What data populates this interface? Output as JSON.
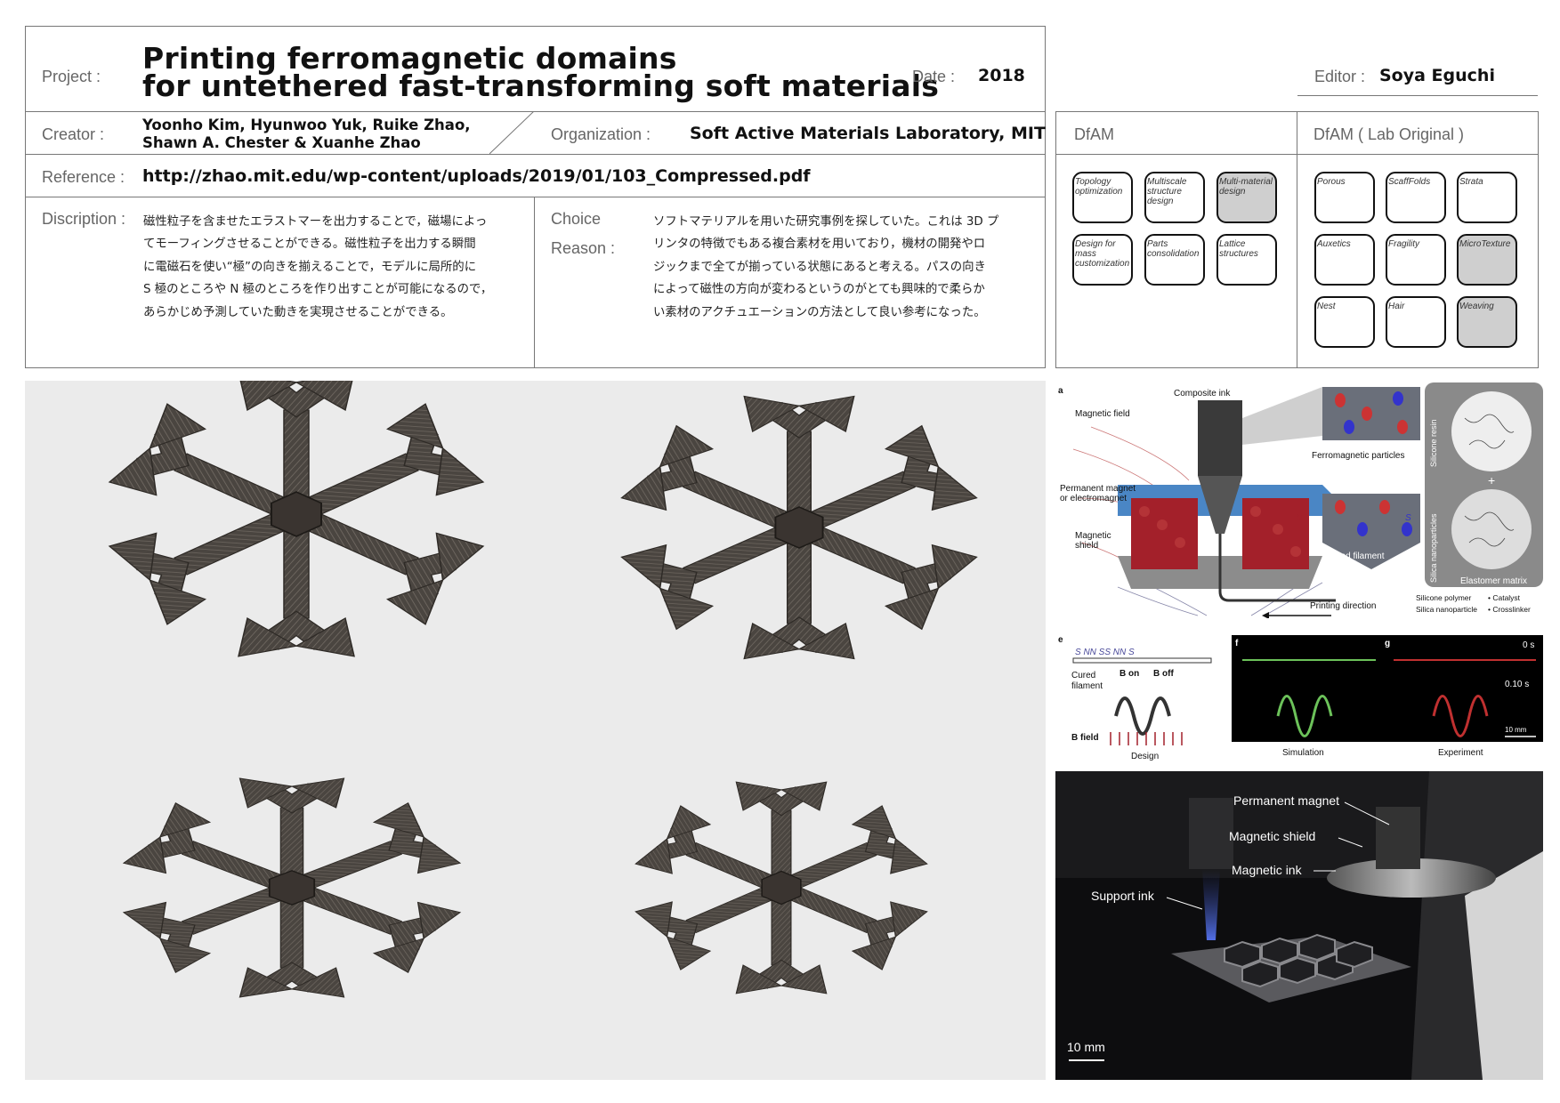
{
  "header": {
    "project_label": "Project :",
    "title_line1": "Printing ferromagnetic domains",
    "title_line2": "for untethered fast-transforming soft materials",
    "date_label": "Date :",
    "date": "2018",
    "editor_label": "Editor :",
    "editor": "Soya Eguchi",
    "creator_label": "Creator :",
    "creator_line1": "Yoonho Kim, Hyunwoo Yuk, Ruike Zhao,",
    "creator_line2": "Shawn A. Chester & Xuanhe Zhao",
    "organization_label": "Organization :",
    "organization": "Soft Active Materials Laboratory, MIT",
    "reference_label": "Reference :",
    "reference": "http://zhao.mit.edu/wp-content/uploads/2019/01/103_Compressed.pdf",
    "description_label": "Discription :",
    "description_lines": [
      "磁性粒子を含ませたエラストマーを出力することで，磁場によっ",
      "てモーフィングさせることができる。磁性粒子を出力する瞬間",
      "に電磁石を使い“極”の向きを揃えることで，モデルに局所的に",
      "S 極のところや N 極のところを作り出すことが可能になるので，",
      "あらかじめ予測していた動きを実現させることができる。"
    ],
    "choice_label_1": "Choice",
    "choice_label_2": "Reason :",
    "choice_lines": [
      "ソフトマテリアルを用いた研究事例を探していた。これは 3D プ",
      "リンタの特徴でもある複合素材を用いており，機材の開発やロ",
      "ジックまで全てが揃っている状態にあると考える。パスの向き",
      "によって磁性の方向が変わるというのがとても興味的で柔らか",
      "い素材のアクチュエーションの方法として良い参考になった。"
    ]
  },
  "dfam": {
    "title": "DfAM",
    "items": [
      {
        "label": "Topology optimization",
        "selected": false
      },
      {
        "label": "Multiscale structure design",
        "selected": false
      },
      {
        "label": "Multi-material design",
        "selected": true
      },
      {
        "label": "Design for mass customization",
        "selected": false
      },
      {
        "label": "Parts consolidation",
        "selected": false
      },
      {
        "label": "Lattice structures",
        "selected": false
      }
    ]
  },
  "lab": {
    "title": "DfAM ( Lab Original )",
    "items": [
      {
        "label": "Porous",
        "selected": false
      },
      {
        "label": "ScaffFolds",
        "selected": false
      },
      {
        "label": "Strata",
        "selected": false
      },
      {
        "label": "Auxetics",
        "selected": false
      },
      {
        "label": "Fragility",
        "selected": false
      },
      {
        "label": "MicroTexture",
        "selected": true
      },
      {
        "label": "Nest",
        "selected": false
      },
      {
        "label": "Hair",
        "selected": false
      },
      {
        "label": "Weaving",
        "selected": true
      }
    ]
  },
  "figure_a": {
    "panel": "a",
    "composite_ink": "Composite ink",
    "magnetic_field": "Magnetic field",
    "ferro_particles": "Ferromagnetic particles",
    "permanent_magnet_1": "Permanent magnet",
    "permanent_magnet_2": "or electromagnet",
    "shield_1": "Magnetic",
    "shield_2": "shield",
    "n": "N",
    "s": "S",
    "printed_filament": "Printed filament",
    "printing_direction": "Printing direction",
    "silicone_resin": "Silicone resin",
    "silica_np": "Silica nanoparticles",
    "plus": "+",
    "elastomer_matrix": "Elastomer matrix",
    "legend_silicone": "Silicone polymer",
    "legend_catalyst": "• Catalyst",
    "legend_silica": "Silica nanoparticle",
    "legend_crosslinker": "• Crosslinker"
  },
  "figure_efg": {
    "e": "e",
    "f": "f",
    "g": "g",
    "poles": "S  NN    SS    NN    S",
    "cured_1": "Cured",
    "cured_2": "filament",
    "b_on": "B on",
    "b_off": "B off",
    "b_field": "B field",
    "design": "Design",
    "simulation": "Simulation",
    "experiment": "Experiment",
    "t0": "0 s",
    "t1": "0.10 s",
    "scale": "10 mm"
  },
  "figure_photo": {
    "permanent_magnet": "Permanent magnet",
    "magnetic_shield": "Magnetic shield",
    "magnetic_ink": "Magnetic ink",
    "support_ink": "Support ink",
    "scale": "10 mm"
  },
  "colors": {
    "border": "#777777",
    "chip_selected": "#cfcfcf",
    "magnet_red": "#a3202a",
    "shield_blue": "#4a86c5",
    "sim_green": "#6cc25a"
  }
}
